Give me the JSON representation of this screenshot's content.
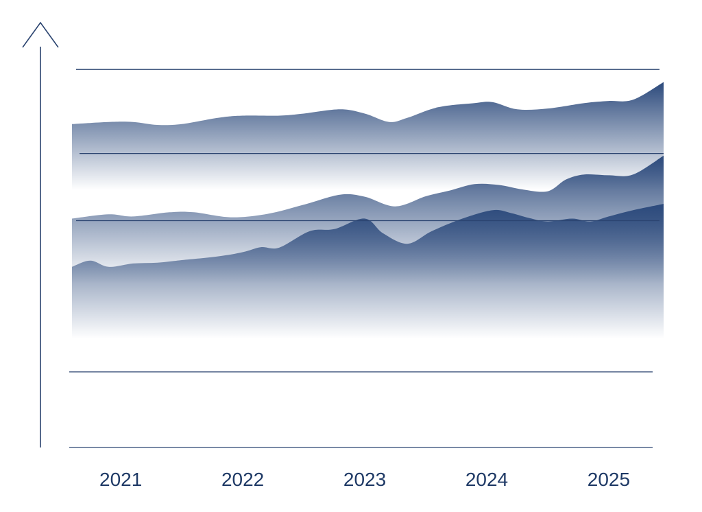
{
  "chart_data": {
    "type": "area",
    "x_tick_labels": [
      "2021",
      "2022",
      "2023",
      "2024",
      "2025"
    ],
    "x_tick_positions": [
      2021,
      2022,
      2023,
      2024,
      2025
    ],
    "xlim": [
      2020.6,
      2025.45
    ],
    "ylim": [
      0,
      100
    ],
    "grid": true,
    "grid_y": [
      0,
      18,
      54,
      70,
      90
    ],
    "legend": "none",
    "colors": {
      "fill": "#2c4a7c",
      "axis": "#2b4470",
      "text": "#1f3a66"
    },
    "series": [
      {
        "x": [
          2020.6,
          2020.9,
          2021.1,
          2021.3,
          2021.5,
          2021.8,
          2022.0,
          2022.3,
          2022.5,
          2022.8,
          2023.0,
          2023.2,
          2023.35,
          2023.6,
          2023.9,
          2024.05,
          2024.25,
          2024.5,
          2024.8,
          2025.0,
          2025.2,
          2025.45
        ],
        "y": [
          77,
          77.5,
          77.5,
          76.8,
          77,
          78.5,
          79,
          79,
          79.5,
          80.5,
          79.5,
          77.5,
          78.5,
          81,
          82,
          82.2,
          80.5,
          80.7,
          82,
          82.5,
          82.8,
          87
        ]
      },
      {
        "x": [
          2020.6,
          2020.9,
          2021.1,
          2021.4,
          2021.6,
          2021.9,
          2022.2,
          2022.5,
          2022.8,
          2023.0,
          2023.25,
          2023.5,
          2023.7,
          2023.9,
          2024.1,
          2024.3,
          2024.5,
          2024.65,
          2024.8,
          2025.0,
          2025.2,
          2025.45
        ],
        "y": [
          54.5,
          55.5,
          55,
          56,
          56,
          54.8,
          55.6,
          57.8,
          60.2,
          59.7,
          57.4,
          59.8,
          61.2,
          62.7,
          62.5,
          61.4,
          61,
          63.8,
          65,
          64.8,
          65,
          69.5
        ]
      },
      {
        "x": [
          2020.6,
          2020.75,
          2020.9,
          2021.1,
          2021.3,
          2021.5,
          2021.8,
          2022.0,
          2022.15,
          2022.3,
          2022.55,
          2022.75,
          2023.0,
          2023.15,
          2023.35,
          2023.55,
          2023.8,
          2024.05,
          2024.2,
          2024.35,
          2024.5,
          2024.7,
          2024.85,
          2025.0,
          2025.2,
          2025.45
        ],
        "y": [
          43,
          44.5,
          43,
          43.8,
          44,
          44.6,
          45.5,
          46.5,
          47.7,
          47.6,
          51.5,
          52,
          54.5,
          51,
          48.5,
          51.5,
          54.5,
          56.5,
          55.8,
          54.6,
          53.8,
          54.5,
          53.8,
          55,
          56.5,
          58
        ]
      }
    ]
  }
}
